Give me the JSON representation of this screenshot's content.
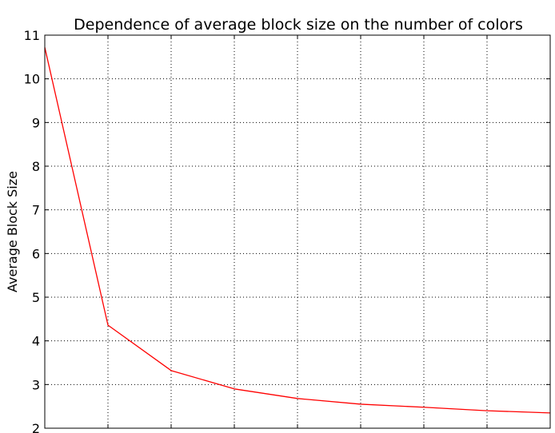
{
  "chart_data": {
    "type": "line",
    "title": "Dependence of average block size on the number of colors",
    "xlabel": "",
    "ylabel": "Average Block Size",
    "x": [
      0,
      1,
      2,
      3,
      4,
      5,
      6,
      7,
      8
    ],
    "series": [
      {
        "values": [
          10.72,
          4.36,
          3.32,
          2.9,
          2.68,
          2.55,
          2.48,
          2.4,
          2.35
        ],
        "color": "#ff0000"
      }
    ],
    "ylim": [
      2,
      11
    ],
    "yticks": [
      2,
      3,
      4,
      5,
      6,
      7,
      8,
      9,
      10,
      11
    ],
    "xticks": [
      1,
      2,
      3,
      4,
      5,
      6,
      7
    ],
    "x_tick_labels_visible": false,
    "grid": true,
    "grid_style": "dotted",
    "legend": "none"
  }
}
